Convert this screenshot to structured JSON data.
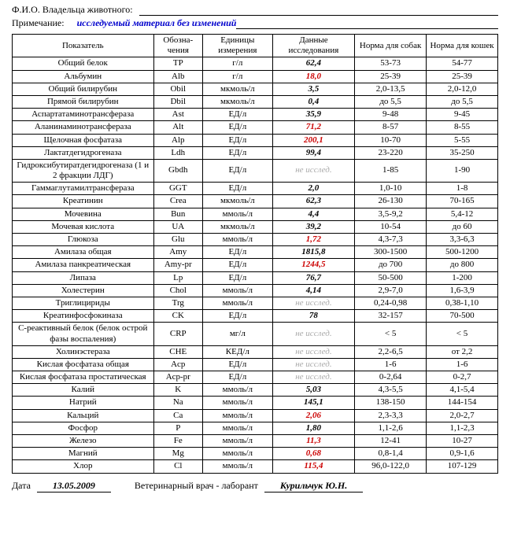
{
  "header": {
    "owner_label": "Ф.И.О. Владельца животного:",
    "note_label": "Примечание:",
    "note_text": "исследуемый материал без изменений"
  },
  "columns": {
    "param": "Показатель",
    "code": "Обозна-чения",
    "unit": "Единицы измерения",
    "data": "Данные исследования",
    "dog": "Норма для собак",
    "cat": "Норма для кошек"
  },
  "rows": [
    {
      "param": "Общий белок",
      "code": "TP",
      "unit": "г/л",
      "data": "62,4",
      "cls": "bold-italic",
      "dog": "53-73",
      "cat": "54-77"
    },
    {
      "param": "Альбумин",
      "code": "Alb",
      "unit": "г/л",
      "data": "18,0",
      "cls": "red",
      "dog": "25-39",
      "cat": "25-39"
    },
    {
      "param": "Общий билирубин",
      "code": "Obil",
      "unit": "мкмоль/л",
      "data": "3,5",
      "cls": "bold-italic",
      "dog": "2,0-13,5",
      "cat": "2,0-12,0"
    },
    {
      "param": "Прямой билирубин",
      "code": "Dbil",
      "unit": "мкмоль/л",
      "data": "0,4",
      "cls": "bold-italic",
      "dog": "до 5,5",
      "cat": "до 5,5"
    },
    {
      "param": "Аспартатаминотрансфераза",
      "code": "Ast",
      "unit": "ЕД/л",
      "data": "35,9",
      "cls": "bold-italic",
      "dog": "9-48",
      "cat": "9-45"
    },
    {
      "param": "Аланинаминотрансфераза",
      "code": "Alt",
      "unit": "ЕД/л",
      "data": "71,2",
      "cls": "red",
      "dog": "8-57",
      "cat": "8-55"
    },
    {
      "param": "Щелочная фосфатаза",
      "code": "Alp",
      "unit": "ЕД/л",
      "data": "200,1",
      "cls": "red",
      "dog": "10-70",
      "cat": "5-55"
    },
    {
      "param": "Лактатдегидрогеназа",
      "code": "Ldh",
      "unit": "ЕД/л",
      "data": "99,4",
      "cls": "bold-italic",
      "dog": "23-220",
      "cat": "35-250"
    },
    {
      "param": "Гидроксибутиратдегидрогеназа (1 и 2 фракции ЛДГ)",
      "code": "Gbdh",
      "unit": "ЕД/л",
      "data": "не исслед.",
      "cls": "gray-italic",
      "dog": "1-85",
      "cat": "1-90"
    },
    {
      "param": "Гаммаглутамилтрансфераза",
      "code": "GGT",
      "unit": "ЕД/л",
      "data": "2,0",
      "cls": "bold-italic",
      "dog": "1,0-10",
      "cat": "1-8"
    },
    {
      "param": "Креатинин",
      "code": "Crea",
      "unit": "мкмоль/л",
      "data": "62,3",
      "cls": "bold-italic",
      "dog": "26-130",
      "cat": "70-165"
    },
    {
      "param": "Мочевина",
      "code": "Bun",
      "unit": "ммоль/л",
      "data": "4,4",
      "cls": "bold-italic",
      "dog": "3,5-9,2",
      "cat": "5,4-12"
    },
    {
      "param": "Мочевая кислота",
      "code": "UA",
      "unit": "мкмоль/л",
      "data": "39,2",
      "cls": "bold-italic",
      "dog": "10-54",
      "cat": "до 60"
    },
    {
      "param": "Глюкоза",
      "code": "Glu",
      "unit": "ммоль/л",
      "data": "1,72",
      "cls": "red",
      "dog": "4,3-7,3",
      "cat": "3,3-6,3"
    },
    {
      "param": "Амилаза общая",
      "code": "Amy",
      "unit": "ЕД/л",
      "data": "1815,8",
      "cls": "bold-italic",
      "dog": "300-1500",
      "cat": "500-1200"
    },
    {
      "param": "Амилаза панкреатическая",
      "code": "Amy-pr",
      "unit": "ЕД/л",
      "data": "1244,5",
      "cls": "red",
      "dog": "до 700",
      "cat": "до 800"
    },
    {
      "param": "Липаза",
      "code": "Lp",
      "unit": "ЕД/л",
      "data": "76,7",
      "cls": "bold-italic",
      "dog": "50-500",
      "cat": "1-200"
    },
    {
      "param": "Холестерин",
      "code": "Chol",
      "unit": "ммоль/л",
      "data": "4,14",
      "cls": "bold-italic",
      "dog": "2,9-7,0",
      "cat": "1,6-3,9"
    },
    {
      "param": "Триглицириды",
      "code": "Trg",
      "unit": "ммоль/л",
      "data": "не исслед.",
      "cls": "gray-italic",
      "dog": "0,24-0,98",
      "cat": "0,38-1,10"
    },
    {
      "param": "Креатинфосфокиназа",
      "code": "CK",
      "unit": "ЕД/л",
      "data": "78",
      "cls": "bold-italic",
      "dog": "32-157",
      "cat": "70-500"
    },
    {
      "param": "С-реактивный белок (белок острой фазы воспаления)",
      "code": "CRP",
      "unit": "мг/л",
      "data": "не исслед.",
      "cls": "gray-italic",
      "dog": "< 5",
      "cat": "< 5"
    },
    {
      "param": "Холинэстераза",
      "code": "CHE",
      "unit": "КЕД/л",
      "data": "не исслед.",
      "cls": "gray-italic",
      "dog": "2,2-6,5",
      "cat": "от 2,2"
    },
    {
      "param": "Кислая фосфатаза общая",
      "code": "Acp",
      "unit": "ЕД/л",
      "data": "не исслед.",
      "cls": "gray-italic",
      "dog": "1-6",
      "cat": "1-6"
    },
    {
      "param": "Кислая фосфатаза простатическая",
      "code": "Acp-pr",
      "unit": "ЕД/л",
      "data": "не исслед.",
      "cls": "gray-italic",
      "dog": "0-2,64",
      "cat": "0-2,7"
    },
    {
      "param": "Калий",
      "code": "K",
      "unit": "ммоль/л",
      "data": "5,03",
      "cls": "bold-italic",
      "dog": "4,3-5,5",
      "cat": "4,1-5,4"
    },
    {
      "param": "Натрий",
      "code": "Na",
      "unit": "ммоль/л",
      "data": "145,1",
      "cls": "bold-italic",
      "dog": "138-150",
      "cat": "144-154"
    },
    {
      "param": "Кальций",
      "code": "Ca",
      "unit": "ммоль/л",
      "data": "2,06",
      "cls": "red",
      "dog": "2,3-3,3",
      "cat": "2,0-2,7"
    },
    {
      "param": "Фосфор",
      "code": "P",
      "unit": "ммоль/л",
      "data": "1,80",
      "cls": "bold-italic",
      "dog": "1,1-2,6",
      "cat": "1,1-2,3"
    },
    {
      "param": "Железо",
      "code": "Fe",
      "unit": "ммоль/л",
      "data": "11,3",
      "cls": "red",
      "dog": "12-41",
      "cat": "10-27"
    },
    {
      "param": "Магний",
      "code": "Mg",
      "unit": "ммоль/л",
      "data": "0,68",
      "cls": "red",
      "dog": "0,8-1,4",
      "cat": "0,9-1,6"
    },
    {
      "param": "Хлор",
      "code": "Cl",
      "unit": "ммоль/л",
      "data": "115,4",
      "cls": "red",
      "dog": "96,0-122,0",
      "cat": "107-129"
    }
  ],
  "footer": {
    "date_label": "Дата",
    "date_value": "13.05.2009",
    "vet_label": "Ветеринарный врач - лаборант",
    "vet_value": "Курильчук Ю.Н."
  }
}
